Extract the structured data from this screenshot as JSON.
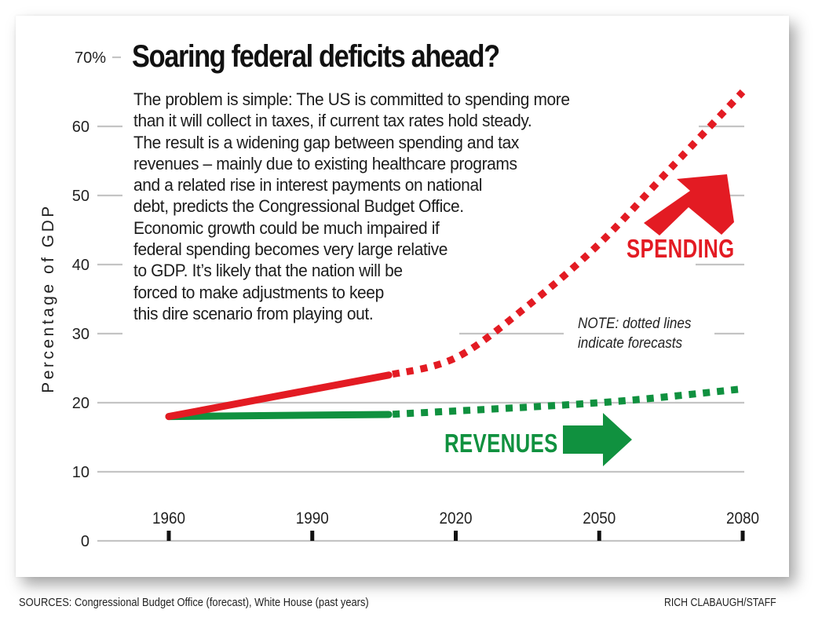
{
  "chart_data": {
    "type": "line",
    "title": "Soaring federal deficits ahead?",
    "description_lines": [
      "The problem is simple: The US is committed to spending more",
      "than it will collect in taxes, if current tax rates hold steady.",
      "The result is a widening gap between spending and tax",
      "revenues – mainly due to existing healthcare programs",
      "and a related rise in interest payments on national",
      "debt, predicts the Congressional Budget Office.",
      "Economic growth could be much impaired if",
      "federal spending becomes very large relative",
      "to GDP. It’s likely that the nation will be",
      "forced to make adjustments to keep",
      "this dire scenario from playing out."
    ],
    "xlabel": "",
    "ylabel": "Percentage of GDP",
    "xlim": [
      1960,
      2080
    ],
    "ylim": [
      0,
      70
    ],
    "x_ticks": [
      1960,
      1990,
      2020,
      2050,
      2080
    ],
    "y_ticks": [
      {
        "value": 0,
        "label": "0"
      },
      {
        "value": 10,
        "label": "10"
      },
      {
        "value": 20,
        "label": "20"
      },
      {
        "value": 30,
        "label": "30"
      },
      {
        "value": 40,
        "label": "40"
      },
      {
        "value": 50,
        "label": "50"
      },
      {
        "value": 60,
        "label": "60"
      },
      {
        "value": 70,
        "label": "70%"
      }
    ],
    "grid": true,
    "series": [
      {
        "name": "SPENDING",
        "color": "#e31b23",
        "actual": {
          "x": [
            1960,
            2006
          ],
          "y": [
            18,
            24
          ]
        },
        "forecast": {
          "x": [
            2006,
            2020,
            2035,
            2050,
            2065,
            2080
          ],
          "y": [
            24,
            26.5,
            34,
            43,
            54,
            65
          ]
        }
      },
      {
        "name": "REVENUES",
        "color": "#10913f",
        "actual": {
          "x": [
            1960,
            2006
          ],
          "y": [
            18,
            18.3
          ]
        },
        "forecast": {
          "x": [
            2006,
            2050,
            2080
          ],
          "y": [
            18.3,
            20,
            22
          ]
        }
      }
    ],
    "annotations": {
      "spending_label": "SPENDING",
      "revenues_label": "REVENUES",
      "note_line1": "NOTE: dotted lines",
      "note_line2": "indicate forecasts"
    },
    "legend": "inline labels with arrows"
  },
  "footer": {
    "sources": "SOURCES: Congressional Budget Office (forecast), White House (past years)",
    "credit": "RICH CLABAUGH/STAFF"
  }
}
